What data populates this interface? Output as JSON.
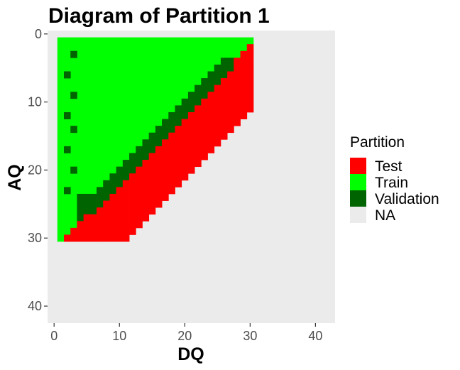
{
  "chart_data": {
    "type": "heatmap",
    "title": "Diagram of Partition 1",
    "xlabel": "DQ",
    "ylabel": "AQ",
    "xlim": [
      -1,
      43
    ],
    "ylim": [
      42.5,
      -0.5
    ],
    "y_reversed": true,
    "x_ticks": [
      0,
      10,
      20,
      30,
      40
    ],
    "y_ticks": [
      0,
      10,
      20,
      30,
      40
    ],
    "panel_background": "#ebebeb",
    "grid": false,
    "legend": {
      "title": "Partition",
      "position": "right",
      "entries": [
        {
          "label": "Test",
          "color": "#ff0000"
        },
        {
          "label": "Train",
          "color": "#00ff00"
        },
        {
          "label": "Validation",
          "color": "#006400"
        },
        {
          "label": "NA",
          "color": "#ebebeb"
        }
      ]
    },
    "cells": {
      "description_of_encoding": "cells present for integer DQ in [1,30] and AQ in [1,30]",
      "train": {
        "region": "0.9*DQ + 1 <= AQ... (see rows)",
        "color": "#00ff00"
      },
      "rows": [
        {
          "aq": 1,
          "train": [
            1,
            30
          ],
          "validation": [],
          "test": []
        },
        {
          "aq": 2,
          "train": [
            1,
            29
          ],
          "validation": [],
          "test": [
            30,
            30
          ]
        },
        {
          "aq": 3,
          "train": [
            1,
            28
          ],
          "validation": [],
          "test": [
            29,
            30
          ]
        },
        {
          "aq": 4,
          "train": [
            1,
            25
          ],
          "validation": [
            26,
            27
          ],
          "test": [
            28,
            30
          ]
        },
        {
          "aq": 5,
          "train": [
            1,
            24
          ],
          "validation": [
            25,
            27
          ],
          "test": [
            28,
            30
          ]
        },
        {
          "aq": 6,
          "train": [
            1,
            23
          ],
          "validation": [
            24,
            26
          ],
          "test": [
            27,
            30
          ]
        },
        {
          "aq": 7,
          "train": [
            1,
            22
          ],
          "validation": [
            23,
            25
          ],
          "test": [
            26,
            30
          ]
        },
        {
          "aq": 8,
          "train": [
            1,
            21
          ],
          "validation": [
            22,
            24
          ],
          "test": [
            25,
            30
          ]
        },
        {
          "aq": 9,
          "train": [
            1,
            20
          ],
          "validation": [
            21,
            23
          ],
          "test": [
            24,
            30
          ]
        },
        {
          "aq": 10,
          "train": [
            1,
            19
          ],
          "validation": [
            20,
            22
          ],
          "test": [
            23,
            30
          ]
        },
        {
          "aq": 11,
          "train": [
            1,
            18
          ],
          "validation": [
            19,
            21
          ],
          "test": [
            22,
            30
          ]
        },
        {
          "aq": 12,
          "train": [
            1,
            17
          ],
          "validation": [
            18,
            20
          ],
          "test": [
            21,
            29
          ]
        },
        {
          "aq": 13,
          "train": [
            1,
            16
          ],
          "validation": [
            17,
            19
          ],
          "test": [
            20,
            28
          ]
        },
        {
          "aq": 14,
          "train": [
            1,
            15
          ],
          "validation": [
            16,
            18
          ],
          "test": [
            19,
            27
          ]
        },
        {
          "aq": 15,
          "train": [
            1,
            14
          ],
          "validation": [
            15,
            17
          ],
          "test": [
            18,
            26
          ]
        },
        {
          "aq": 16,
          "train": [
            1,
            13
          ],
          "validation": [
            14,
            16
          ],
          "test": [
            17,
            25
          ]
        },
        {
          "aq": 17,
          "train": [
            1,
            12
          ],
          "validation": [
            13,
            15
          ],
          "test": [
            16,
            24
          ]
        },
        {
          "aq": 18,
          "train": [
            1,
            11
          ],
          "validation": [
            12,
            14
          ],
          "test": [
            15,
            23
          ]
        },
        {
          "aq": 19,
          "train": [
            1,
            10
          ],
          "validation": [
            11,
            13
          ],
          "test": [
            14,
            22
          ]
        },
        {
          "aq": 20,
          "train": [
            1,
            9
          ],
          "validation": [
            10,
            12
          ],
          "test": [
            13,
            21
          ]
        },
        {
          "aq": 21,
          "train": [
            1,
            8
          ],
          "validation": [
            9,
            11
          ],
          "test": [
            12,
            20
          ]
        },
        {
          "aq": 22,
          "train": [
            1,
            7
          ],
          "validation": [
            8,
            10
          ],
          "test": [
            11,
            19
          ]
        },
        {
          "aq": 23,
          "train": [
            1,
            6
          ],
          "validation": [
            7,
            9
          ],
          "test": [
            10,
            18
          ]
        },
        {
          "aq": 24,
          "train": [
            1,
            3
          ],
          "validation": [
            4,
            8
          ],
          "test": [
            9,
            17
          ]
        },
        {
          "aq": 25,
          "train": [
            1,
            3
          ],
          "validation": [
            4,
            7
          ],
          "test": [
            8,
            16
          ]
        },
        {
          "aq": 26,
          "train": [
            1,
            3
          ],
          "validation": [
            4,
            6
          ],
          "test": [
            7,
            15
          ]
        },
        {
          "aq": 27,
          "train": [
            1,
            3
          ],
          "validation": [
            4,
            4
          ],
          "test": [
            5,
            14
          ]
        },
        {
          "aq": 28,
          "train": [
            1,
            3
          ],
          "validation": [],
          "test": [
            4,
            13
          ]
        },
        {
          "aq": 29,
          "train": [
            1,
            2
          ],
          "validation": [],
          "test": [
            3,
            12
          ]
        },
        {
          "aq": 30,
          "train": [
            1,
            1
          ],
          "validation": [],
          "test": [
            2,
            11
          ]
        }
      ],
      "validation_points": [
        {
          "dq": 3,
          "aq": 3
        },
        {
          "dq": 2,
          "aq": 6
        },
        {
          "dq": 3,
          "aq": 9
        },
        {
          "dq": 2,
          "aq": 12
        },
        {
          "dq": 3,
          "aq": 14
        },
        {
          "dq": 2,
          "aq": 17
        },
        {
          "dq": 3,
          "aq": 20
        },
        {
          "dq": 2,
          "aq": 23
        }
      ]
    }
  }
}
